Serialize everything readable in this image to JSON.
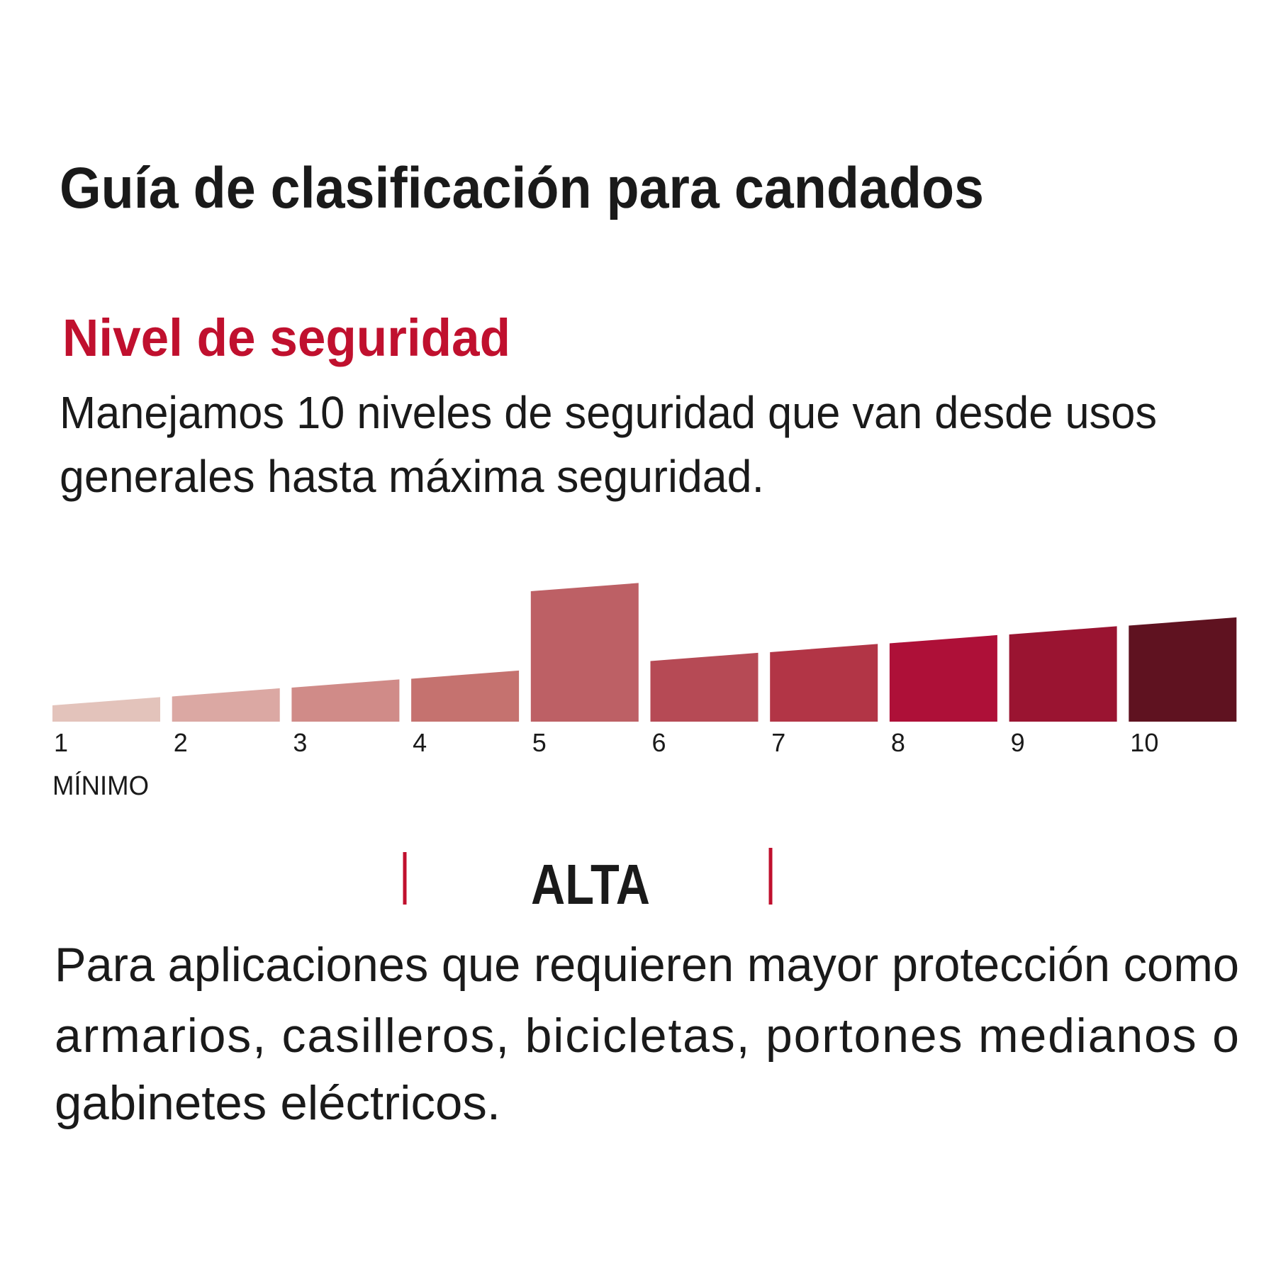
{
  "title": "Guía de clasificación para candados",
  "section": {
    "heading": "Nivel de seguridad",
    "intro": [
      "Manejamos 10 niveles de seguridad que van desde usos",
      "generales hasta máxima seguridad."
    ]
  },
  "scale": {
    "levels": [
      {
        "label": "1",
        "color": "#e3c3bb"
      },
      {
        "label": "2",
        "color": "#dba8a3"
      },
      {
        "label": "3",
        "color": "#d08b88"
      },
      {
        "label": "4",
        "color": "#c5726f"
      },
      {
        "label": "5",
        "color": "#bd6065",
        "selected": true
      },
      {
        "label": "6",
        "color": "#b64a55"
      },
      {
        "label": "7",
        "color": "#b23546"
      },
      {
        "label": "8",
        "color": "#ae1038"
      },
      {
        "label": "9",
        "color": "#9a1431"
      },
      {
        "label": "10",
        "color": "#5f1220"
      }
    ],
    "min_label": "MÍNIMO"
  },
  "rating": {
    "name": "ALTA",
    "description": [
      "Para aplicaciones que requieren mayor protección como",
      "armarios, casilleros, bicicletas, portones medianos o",
      "gabinetes eléctricos."
    ]
  }
}
